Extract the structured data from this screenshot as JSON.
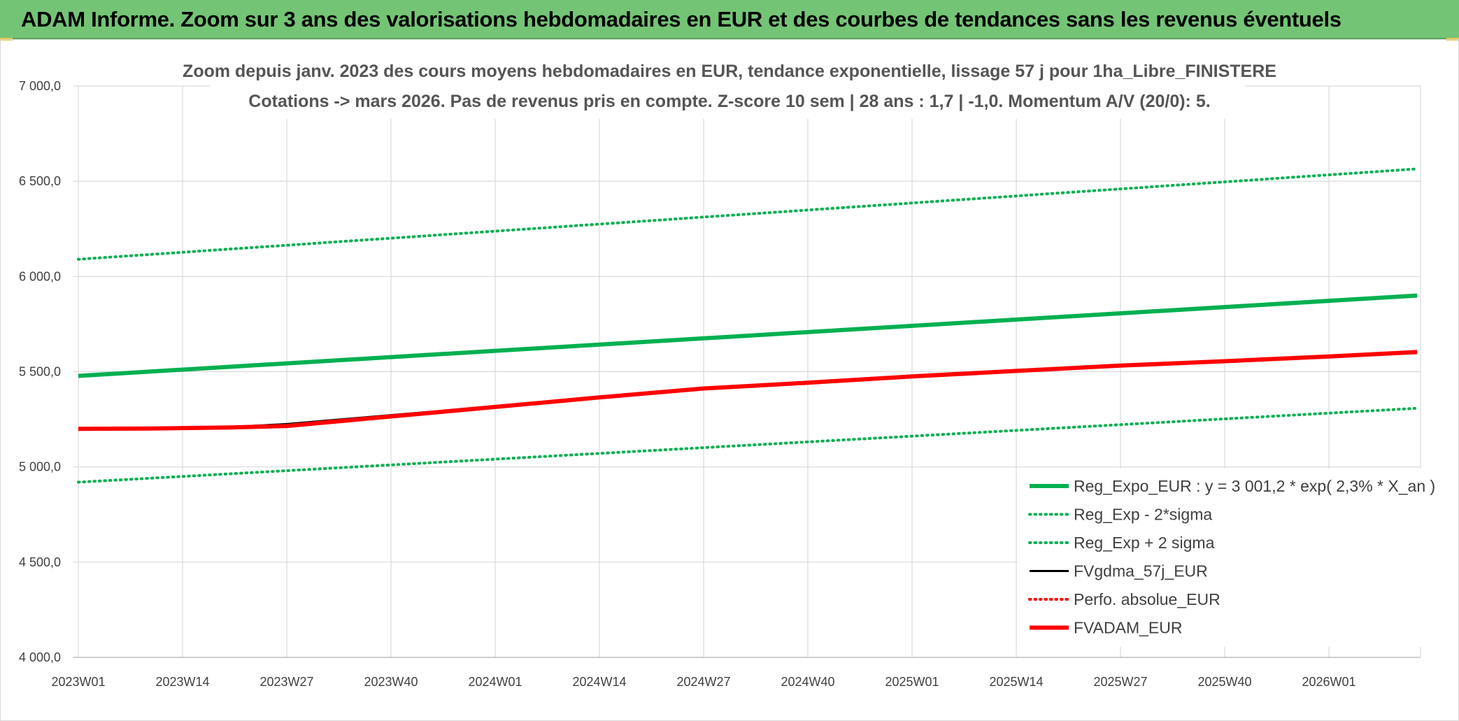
{
  "header": {
    "title": "ADAM Informe. Zoom sur 3 ans des valorisations hebdomadaires en EUR et des courbes de tendances sans les revenus éventuels"
  },
  "chart_data": {
    "type": "line",
    "title_line1": "Zoom depuis janv. 2023 des cours moyens hebdomadaires en EUR, tendance exponentielle, lissage 57 j pour 1ha_Libre_FINISTERE",
    "title_line2": "Cotations -> mars 2026. Pas de revenus pris en compte. Z-score 10 sem | 28 ans : 1,7 | -1,0. Momentum A/V (20/0): 5.",
    "x_tick_labels": [
      "2023W01",
      "2023W14",
      "2023W27",
      "2023W40",
      "2024W01",
      "2024W14",
      "2024W27",
      "2024W40",
      "2025W01",
      "2025W14",
      "2025W27",
      "2025W40",
      "2026W01"
    ],
    "y_tick_labels": [
      "4 000,0",
      "4 500,0",
      "5 000,0",
      "5 500,0",
      "6 000,0",
      "6 500,0",
      "7 000,0"
    ],
    "ylim": [
      4000,
      7000
    ],
    "grid": true,
    "legend_position": "bottom-right",
    "series": [
      {
        "name": "Reg_Expo_EUR : y = 3 001,2 * exp( 2,3% *  X_an )",
        "color": "#00b050",
        "style": "solid-thick",
        "x": [
          "2023W01",
          "2026W12"
        ],
        "y": [
          5478,
          5900
        ]
      },
      {
        "name": "Reg_Exp - 2*sigma",
        "color": "#00b050",
        "style": "dotted",
        "x": [
          "2023W01",
          "2026W12"
        ],
        "y": [
          4920,
          5308
        ]
      },
      {
        "name": "Reg_Exp + 2 sigma",
        "color": "#00b050",
        "style": "dotted",
        "x": [
          "2023W01",
          "2026W12"
        ],
        "y": [
          6090,
          6565
        ]
      },
      {
        "name": "FVgdma_57j_EUR",
        "color": "#000000",
        "style": "solid",
        "x": [
          "2023W01",
          "2023W10",
          "2023W20",
          "2023W27",
          "2023W40",
          "2024W01",
          "2024W14",
          "2024W27",
          "2024W40",
          "2025W01",
          "2025W14",
          "2025W27",
          "2025W40",
          "2026W01",
          "2026W12"
        ],
        "y": [
          5200,
          5203,
          5210,
          5225,
          5272,
          5318,
          5368,
          5413,
          5443,
          5476,
          5505,
          5533,
          5556,
          5580,
          5603
        ]
      },
      {
        "name": "Perfo. absolue_EUR",
        "color": "#ff0000",
        "style": "dotted",
        "x": [],
        "y": []
      },
      {
        "name": "FVADAM_EUR",
        "color": "#ff0000",
        "style": "solid-thick",
        "x": [
          "2023W01",
          "2023W10",
          "2023W20",
          "2023W27",
          "2023W40",
          "2024W01",
          "2024W14",
          "2024W27",
          "2024W40",
          "2025W01",
          "2025W14",
          "2025W27",
          "2025W40",
          "2026W01",
          "2026W12"
        ],
        "y": [
          5200,
          5202,
          5207,
          5215,
          5265,
          5315,
          5365,
          5412,
          5442,
          5475,
          5504,
          5532,
          5555,
          5580,
          5603
        ]
      }
    ]
  }
}
